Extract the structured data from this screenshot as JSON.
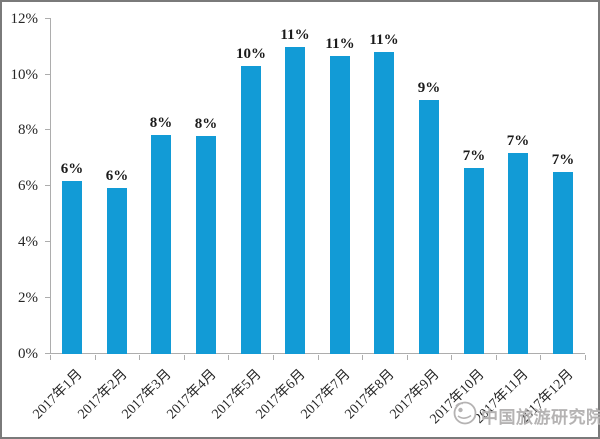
{
  "figure": {
    "watermark_text": "中国旅游研究院"
  },
  "chart_data": {
    "type": "bar",
    "title": "",
    "xlabel": "",
    "ylabel": "",
    "categories": [
      "2017年1月",
      "2017年2月",
      "2017年3月",
      "2017年4月",
      "2017年5月",
      "2017年6月",
      "2017年7月",
      "2017年8月",
      "2017年9月",
      "2017年10月",
      "2017年11月",
      "2017年12月"
    ],
    "values": [
      6.2,
      5.95,
      7.85,
      7.8,
      10.3,
      11.0,
      10.65,
      10.8,
      9.1,
      6.65,
      7.2,
      6.5
    ],
    "bar_labels": [
      "6%",
      "6%",
      "8%",
      "8%",
      "10%",
      "11%",
      "11%",
      "11%",
      "9%",
      "7%",
      "7%",
      "7%"
    ],
    "ylim": [
      0,
      12
    ],
    "y_tick_labels": [
      "0%",
      "2%",
      "4%",
      "6%",
      "8%",
      "10%",
      "12%"
    ],
    "grid": false,
    "legend_position": "none",
    "bar_color": "#129bd6"
  },
  "colors": {
    "bar": "#129bd6",
    "axis": "#adadad",
    "label_text": "#1a1a1a",
    "figure_border": "#7a7a7a",
    "watermark": "#b5b3b3",
    "background": "#ffffff"
  }
}
